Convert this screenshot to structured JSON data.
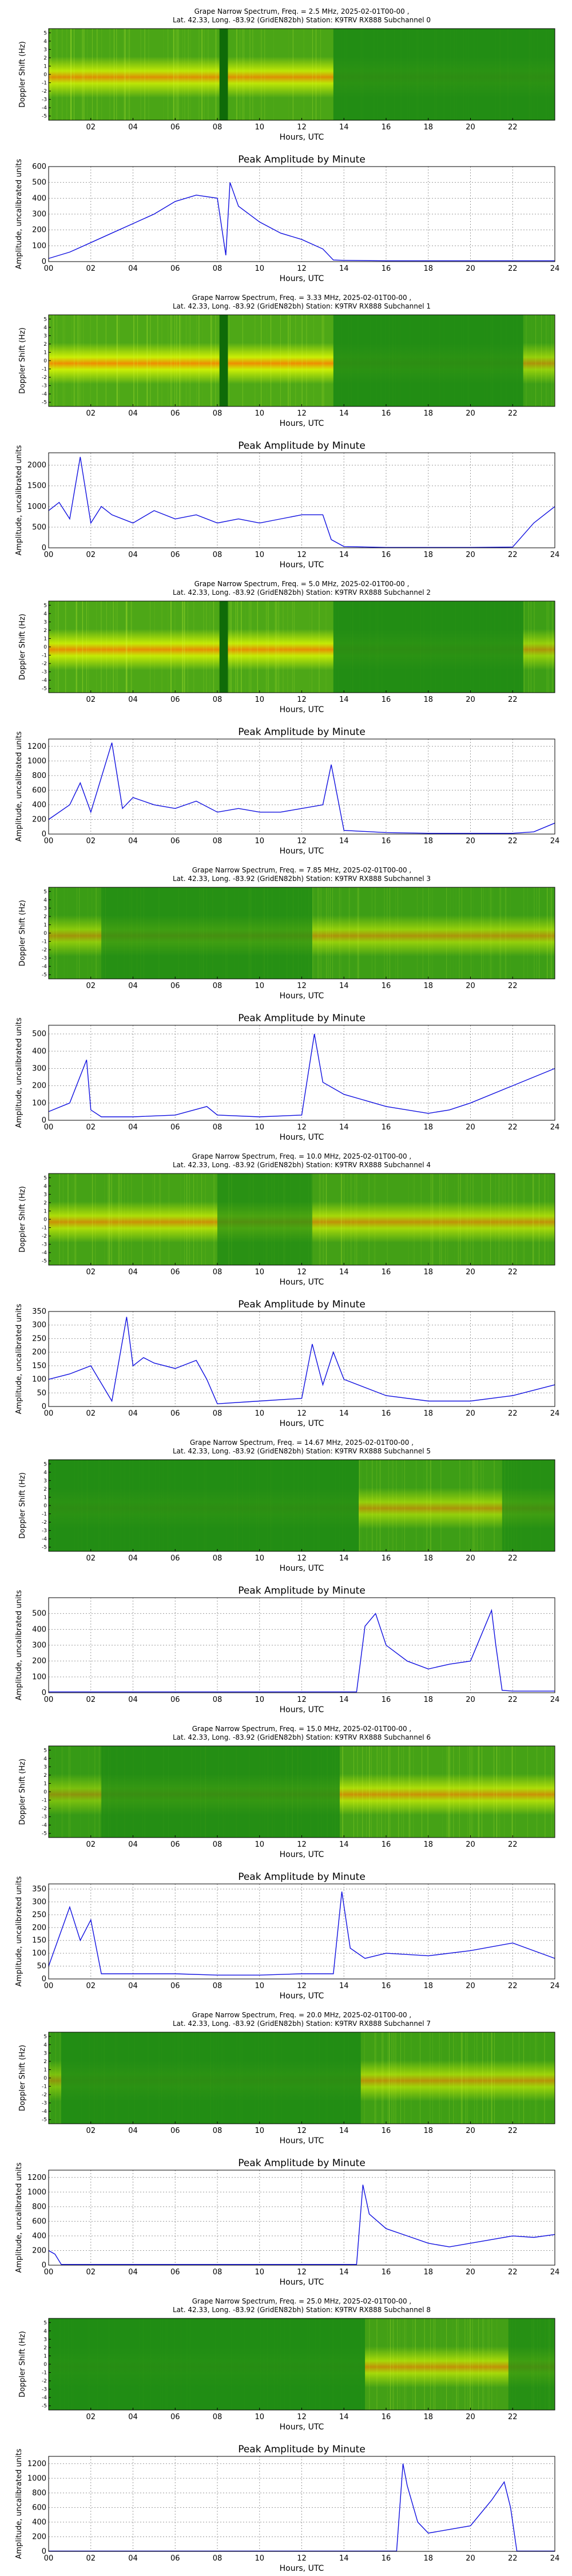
{
  "chart_data": [
    {
      "type": "heatmap",
      "title_line1": "Grape Narrow Spectrum, Freq. = 2.5 MHz, 2025-02-01T00-00 ,",
      "title_line2": "Lat.  42.33, Long. -83.92 (GridEN82bh) Station: K9TRV RX888 Subchannel 0",
      "xlabel": "Hours, UTC",
      "ylabel": "Doppler Shift (Hz)",
      "xticks": [
        "02",
        "04",
        "06",
        "08",
        "10",
        "12",
        "14",
        "16",
        "18",
        "20",
        "22"
      ],
      "yticks": [
        "-5",
        "-4",
        "-3",
        "-2",
        "-1",
        "0",
        "1",
        "2",
        "3",
        "4",
        "5"
      ],
      "signal": [
        {
          "x0": 0,
          "x1": 13.5,
          "level": 0.85
        },
        {
          "x0": 13.5,
          "x1": 24,
          "level": 0.05
        }
      ],
      "gaps": [
        {
          "x0": 8.1,
          "x1": 8.5
        }
      ]
    },
    {
      "type": "line",
      "title": "Peak Amplitude by Minute",
      "xlabel": "Hours, UTC",
      "ylabel": "Amplitude, uncalibrated units",
      "xlim": [
        0,
        24
      ],
      "ylim": [
        0,
        600
      ],
      "xticks": [
        "00",
        "02",
        "04",
        "06",
        "08",
        "10",
        "12",
        "14",
        "16",
        "18",
        "20",
        "22",
        "24"
      ],
      "yticks": [
        "0",
        "100",
        "200",
        "300",
        "400",
        "500",
        "600"
      ],
      "x": [
        0,
        1,
        2,
        3,
        4,
        5,
        6,
        7,
        8,
        8.4,
        8.6,
        9,
        10,
        11,
        12,
        13,
        13.5,
        14,
        16,
        18,
        20,
        22,
        24
      ],
      "y": [
        20,
        60,
        120,
        180,
        240,
        300,
        380,
        420,
        400,
        40,
        500,
        350,
        250,
        180,
        140,
        80,
        10,
        8,
        5,
        5,
        5,
        5,
        5
      ]
    },
    {
      "type": "heatmap",
      "title_line1": "Grape Narrow Spectrum, Freq. = 3.33 MHz, 2025-02-01T00-00 ,",
      "title_line2": "Lat.  42.33, Long. -83.92 (GridEN82bh) Station: K9TRV RX888 Subchannel 1",
      "xlabel": "Hours, UTC",
      "ylabel": "Doppler Shift (Hz)",
      "xticks": [
        "02",
        "04",
        "06",
        "08",
        "10",
        "12",
        "14",
        "16",
        "18",
        "20",
        "22"
      ],
      "yticks": [
        "-5",
        "-4",
        "-3",
        "-2",
        "-1",
        "0",
        "1",
        "2",
        "3",
        "4",
        "5"
      ],
      "signal": [
        {
          "x0": 0,
          "x1": 13.5,
          "level": 0.95
        },
        {
          "x0": 13.5,
          "x1": 22.5,
          "level": 0.05
        },
        {
          "x0": 22.5,
          "x1": 24,
          "level": 0.6
        }
      ],
      "gaps": [
        {
          "x0": 8.1,
          "x1": 8.5
        }
      ]
    },
    {
      "type": "line",
      "title": "Peak Amplitude by Minute",
      "xlabel": "Hours, UTC",
      "ylabel": "Amplitude, uncalibrated units",
      "xlim": [
        0,
        24
      ],
      "ylim": [
        0,
        2300
      ],
      "xticks": [
        "00",
        "02",
        "04",
        "06",
        "08",
        "10",
        "12",
        "14",
        "16",
        "18",
        "20",
        "22",
        "24"
      ],
      "yticks": [
        "0",
        "500",
        "1000",
        "1500",
        "2000"
      ],
      "x": [
        0,
        0.5,
        1,
        1.5,
        2,
        2.5,
        3,
        4,
        5,
        6,
        7,
        8,
        9,
        10,
        11,
        12,
        13,
        13.4,
        14,
        16,
        18,
        20,
        22,
        23,
        24
      ],
      "y": [
        900,
        1100,
        700,
        2200,
        600,
        1000,
        800,
        600,
        900,
        700,
        800,
        600,
        700,
        600,
        700,
        800,
        800,
        200,
        30,
        10,
        10,
        10,
        20,
        600,
        1000
      ]
    },
    {
      "type": "heatmap",
      "title_line1": "Grape Narrow Spectrum, Freq. = 5.0 MHz, 2025-02-01T00-00 ,",
      "title_line2": "Lat.  42.33, Long. -83.92 (GridEN82bh) Station: K9TRV RX888 Subchannel 2",
      "xlabel": "Hours, UTC",
      "ylabel": "Doppler Shift (Hz)",
      "xticks": [
        "02",
        "04",
        "06",
        "08",
        "10",
        "12",
        "14",
        "16",
        "18",
        "20",
        "22"
      ],
      "yticks": [
        "-5",
        "-4",
        "-3",
        "-2",
        "-1",
        "0",
        "1",
        "2",
        "3",
        "4",
        "5"
      ],
      "signal": [
        {
          "x0": 0,
          "x1": 13.5,
          "level": 0.9
        },
        {
          "x0": 13.5,
          "x1": 22.5,
          "level": 0.05
        },
        {
          "x0": 22.5,
          "x1": 24,
          "level": 0.6
        }
      ],
      "gaps": [
        {
          "x0": 8.1,
          "x1": 8.5
        }
      ]
    },
    {
      "type": "line",
      "title": "Peak Amplitude by Minute",
      "xlabel": "Hours, UTC",
      "ylabel": "Amplitude, uncalibrated units",
      "xlim": [
        0,
        24
      ],
      "ylim": [
        0,
        1300
      ],
      "xticks": [
        "00",
        "02",
        "04",
        "06",
        "08",
        "10",
        "12",
        "14",
        "16",
        "18",
        "20",
        "22",
        "24"
      ],
      "yticks": [
        "0",
        "200",
        "400",
        "600",
        "800",
        "1000",
        "1200"
      ],
      "x": [
        0,
        1,
        1.5,
        2,
        3,
        3.5,
        4,
        5,
        6,
        7,
        8,
        9,
        10,
        11,
        12,
        13,
        13.4,
        14,
        16,
        18,
        20,
        22,
        23,
        24
      ],
      "y": [
        200,
        400,
        700,
        300,
        1250,
        350,
        500,
        400,
        350,
        450,
        300,
        350,
        300,
        300,
        350,
        400,
        950,
        50,
        20,
        10,
        10,
        10,
        30,
        150
      ]
    },
    {
      "type": "heatmap",
      "title_line1": "Grape Narrow Spectrum, Freq. = 7.85 MHz, 2025-02-01T00-00 ,",
      "title_line2": "Lat.  42.33, Long. -83.92 (GridEN82bh) Station: K9TRV RX888 Subchannel 3",
      "xlabel": "Hours, UTC",
      "ylabel": "Doppler Shift (Hz)",
      "xticks": [
        "02",
        "04",
        "06",
        "08",
        "10",
        "12",
        "14",
        "16",
        "18",
        "20",
        "22"
      ],
      "yticks": [
        "-5",
        "-4",
        "-3",
        "-2",
        "-1",
        "0",
        "1",
        "2",
        "3",
        "4",
        "5"
      ],
      "signal": [
        {
          "x0": 0,
          "x1": 2.5,
          "level": 0.55
        },
        {
          "x0": 2.5,
          "x1": 12.5,
          "level": 0.15
        },
        {
          "x0": 12.5,
          "x1": 24,
          "level": 0.6
        }
      ],
      "gaps": []
    },
    {
      "type": "line",
      "title": "Peak Amplitude by Minute",
      "xlabel": "Hours, UTC",
      "ylabel": "Amplitude, uncalibrated units",
      "xlim": [
        0,
        24
      ],
      "ylim": [
        0,
        550
      ],
      "xticks": [
        "00",
        "02",
        "04",
        "06",
        "08",
        "10",
        "12",
        "14",
        "16",
        "18",
        "20",
        "22",
        "24"
      ],
      "yticks": [
        "0",
        "100",
        "200",
        "300",
        "400",
        "500"
      ],
      "x": [
        0,
        1,
        1.8,
        2,
        2.5,
        4,
        6,
        7.5,
        8,
        10,
        12,
        12.6,
        13,
        14,
        16,
        18,
        19,
        20,
        22,
        24
      ],
      "y": [
        50,
        100,
        350,
        60,
        20,
        20,
        30,
        80,
        30,
        20,
        30,
        500,
        220,
        150,
        80,
        40,
        60,
        100,
        200,
        300
      ]
    },
    {
      "type": "heatmap",
      "title_line1": "Grape Narrow Spectrum, Freq. = 10.0 MHz, 2025-02-01T00-00 ,",
      "title_line2": "Lat.  42.33, Long. -83.92 (GridEN82bh) Station: K9TRV RX888 Subchannel 4",
      "xlabel": "Hours, UTC",
      "ylabel": "Doppler Shift (Hz)",
      "xticks": [
        "02",
        "04",
        "06",
        "08",
        "10",
        "12",
        "14",
        "16",
        "18",
        "20",
        "22"
      ],
      "yticks": [
        "-5",
        "-4",
        "-3",
        "-2",
        "-1",
        "0",
        "1",
        "2",
        "3",
        "4",
        "5"
      ],
      "signal": [
        {
          "x0": 0,
          "x1": 8,
          "level": 0.75
        },
        {
          "x0": 8,
          "x1": 12.5,
          "level": 0.2
        },
        {
          "x0": 12.5,
          "x1": 24,
          "level": 0.7
        }
      ],
      "gaps": []
    },
    {
      "type": "line",
      "title": "Peak Amplitude by Minute",
      "xlabel": "Hours, UTC",
      "ylabel": "Amplitude, uncalibrated units",
      "xlim": [
        0,
        24
      ],
      "ylim": [
        0,
        350
      ],
      "xticks": [
        "00",
        "02",
        "04",
        "06",
        "08",
        "10",
        "12",
        "14",
        "16",
        "18",
        "20",
        "22",
        "24"
      ],
      "yticks": [
        "0",
        "50",
        "100",
        "150",
        "200",
        "250",
        "300",
        "350"
      ],
      "x": [
        0,
        1,
        2,
        3,
        3.7,
        4,
        4.5,
        5,
        6,
        7,
        7.5,
        8,
        10,
        12,
        12.5,
        13,
        13.5,
        14,
        16,
        18,
        20,
        22,
        24
      ],
      "y": [
        100,
        120,
        150,
        20,
        330,
        150,
        180,
        160,
        140,
        170,
        100,
        10,
        20,
        30,
        230,
        80,
        200,
        100,
        40,
        20,
        20,
        40,
        80
      ]
    },
    {
      "type": "heatmap",
      "title_line1": "Grape Narrow Spectrum, Freq. = 14.67 MHz, 2025-02-01T00-00 ,",
      "title_line2": "Lat.  42.33, Long. -83.92 (GridEN82bh) Station: K9TRV RX888 Subchannel 5",
      "xlabel": "Hours, UTC",
      "ylabel": "Doppler Shift (Hz)",
      "xticks": [
        "02",
        "04",
        "06",
        "08",
        "10",
        "12",
        "14",
        "16",
        "18",
        "20",
        "22"
      ],
      "yticks": [
        "-5",
        "-4",
        "-3",
        "-2",
        "-1",
        "0",
        "1",
        "2",
        "3",
        "4",
        "5"
      ],
      "signal": [
        {
          "x0": 0,
          "x1": 14.7,
          "level": 0.05
        },
        {
          "x0": 14.7,
          "x1": 21.5,
          "level": 0.6
        },
        {
          "x0": 21.5,
          "x1": 24,
          "level": 0.15
        }
      ],
      "gaps": []
    },
    {
      "type": "line",
      "title": "Peak Amplitude by Minute",
      "xlabel": "Hours, UTC",
      "ylabel": "Amplitude, uncalibrated units",
      "xlim": [
        0,
        24
      ],
      "ylim": [
        0,
        600
      ],
      "xticks": [
        "00",
        "02",
        "04",
        "06",
        "08",
        "10",
        "12",
        "14",
        "16",
        "18",
        "20",
        "22",
        "24"
      ],
      "yticks": [
        "0",
        "100",
        "200",
        "300",
        "400",
        "500"
      ],
      "x": [
        0,
        4,
        8,
        12,
        14.6,
        15,
        15.5,
        16,
        17,
        18,
        19,
        20,
        21,
        21.2,
        21.5,
        22,
        24
      ],
      "y": [
        5,
        5,
        5,
        5,
        5,
        420,
        500,
        300,
        200,
        150,
        180,
        200,
        520,
        300,
        15,
        10,
        10
      ]
    },
    {
      "type": "heatmap",
      "title_line1": "Grape Narrow Spectrum, Freq. = 15.0 MHz, 2025-02-01T00-00 ,",
      "title_line2": "Lat.  42.33, Long. -83.92 (GridEN82bh) Station: K9TRV RX888 Subchannel 6",
      "xlabel": "Hours, UTC",
      "ylabel": "Doppler Shift (Hz)",
      "xticks": [
        "02",
        "04",
        "06",
        "08",
        "10",
        "12",
        "14",
        "16",
        "18",
        "20",
        "22"
      ],
      "yticks": [
        "-5",
        "-4",
        "-3",
        "-2",
        "-1",
        "0",
        "1",
        "2",
        "3",
        "4",
        "5"
      ],
      "signal": [
        {
          "x0": 0,
          "x1": 2.5,
          "level": 0.45
        },
        {
          "x0": 2.5,
          "x1": 13.8,
          "level": 0.1
        },
        {
          "x0": 13.8,
          "x1": 24,
          "level": 0.75
        }
      ],
      "gaps": []
    },
    {
      "type": "line",
      "title": "Peak Amplitude by Minute",
      "xlabel": "Hours, UTC",
      "ylabel": "Amplitude, uncalibrated units",
      "xlim": [
        0,
        24
      ],
      "ylim": [
        0,
        370
      ],
      "xticks": [
        "00",
        "02",
        "04",
        "06",
        "08",
        "10",
        "12",
        "14",
        "16",
        "18",
        "20",
        "22",
        "24"
      ],
      "yticks": [
        "0",
        "50",
        "100",
        "150",
        "200",
        "250",
        "300",
        "350"
      ],
      "x": [
        0,
        1,
        1.5,
        2,
        2.5,
        4,
        6,
        8,
        10,
        12,
        13.5,
        13.9,
        14.3,
        15,
        16,
        18,
        20,
        22,
        24
      ],
      "y": [
        50,
        280,
        150,
        230,
        20,
        20,
        20,
        15,
        15,
        20,
        20,
        340,
        120,
        80,
        100,
        90,
        110,
        140,
        80
      ]
    },
    {
      "type": "heatmap",
      "title_line1": "Grape Narrow Spectrum, Freq. = 20.0 MHz, 2025-02-01T00-00 ,",
      "title_line2": "Lat.  42.33, Long. -83.92 (GridEN82bh) Station: K9TRV RX888 Subchannel 7",
      "xlabel": "Hours, UTC",
      "ylabel": "Doppler Shift (Hz)",
      "xticks": [
        "02",
        "04",
        "06",
        "08",
        "10",
        "12",
        "14",
        "16",
        "18",
        "20",
        "22"
      ],
      "yticks": [
        "-5",
        "-4",
        "-3",
        "-2",
        "-1",
        "0",
        "1",
        "2",
        "3",
        "4",
        "5"
      ],
      "signal": [
        {
          "x0": 0,
          "x1": 0.6,
          "level": 0.45
        },
        {
          "x0": 0.6,
          "x1": 14.8,
          "level": 0.05
        },
        {
          "x0": 14.8,
          "x1": 24,
          "level": 0.65
        }
      ],
      "gaps": []
    },
    {
      "type": "line",
      "title": "Peak Amplitude by Minute",
      "xlabel": "Hours, UTC",
      "ylabel": "Amplitude, uncalibrated units",
      "xlim": [
        0,
        24
      ],
      "ylim": [
        0,
        1300
      ],
      "xticks": [
        "00",
        "02",
        "04",
        "06",
        "08",
        "10",
        "12",
        "14",
        "16",
        "18",
        "20",
        "22",
        "24"
      ],
      "yticks": [
        "0",
        "200",
        "400",
        "600",
        "800",
        "1000",
        "1200"
      ],
      "x": [
        0,
        0.3,
        0.6,
        2,
        4,
        8,
        12,
        14.6,
        14.9,
        15.2,
        16,
        17,
        18,
        19,
        20,
        21,
        22,
        23,
        24
      ],
      "y": [
        200,
        150,
        10,
        10,
        10,
        10,
        10,
        10,
        1100,
        700,
        500,
        400,
        300,
        250,
        300,
        350,
        400,
        380,
        420
      ]
    },
    {
      "type": "heatmap",
      "title_line1": "Grape Narrow Spectrum, Freq. = 25.0 MHz, 2025-02-01T00-00 ,",
      "title_line2": "Lat.  42.33, Long. -83.92 (GridEN82bh) Station: K9TRV RX888 Subchannel 8",
      "xlabel": "Hours, UTC",
      "ylabel": "Doppler Shift (Hz)",
      "xticks": [
        "02",
        "04",
        "06",
        "08",
        "10",
        "12",
        "14",
        "16",
        "18",
        "20",
        "22"
      ],
      "yticks": [
        "-5",
        "-4",
        "-3",
        "-2",
        "-1",
        "0",
        "1",
        "2",
        "3",
        "4",
        "5"
      ],
      "signal": [
        {
          "x0": 0,
          "x1": 15,
          "level": 0.03
        },
        {
          "x0": 15,
          "x1": 21.8,
          "level": 0.7
        },
        {
          "x0": 21.8,
          "x1": 24,
          "level": 0.15
        }
      ],
      "gaps": []
    },
    {
      "type": "line",
      "title": "Peak Amplitude by Minute",
      "xlabel": "Hours, UTC",
      "ylabel": "Amplitude, uncalibrated units",
      "xlim": [
        0,
        24
      ],
      "ylim": [
        0,
        1300
      ],
      "xticks": [
        "00",
        "02",
        "04",
        "06",
        "08",
        "10",
        "12",
        "14",
        "16",
        "18",
        "20",
        "22",
        "24"
      ],
      "yticks": [
        "0",
        "200",
        "400",
        "600",
        "800",
        "1000",
        "1200"
      ],
      "x": [
        0,
        4,
        8,
        12,
        15,
        16.5,
        16.8,
        17,
        17.5,
        18,
        19,
        20,
        21,
        21.6,
        21.9,
        22.2,
        24
      ],
      "y": [
        5,
        5,
        5,
        5,
        5,
        5,
        1200,
        900,
        400,
        250,
        300,
        350,
        700,
        950,
        600,
        5,
        5
      ]
    }
  ]
}
